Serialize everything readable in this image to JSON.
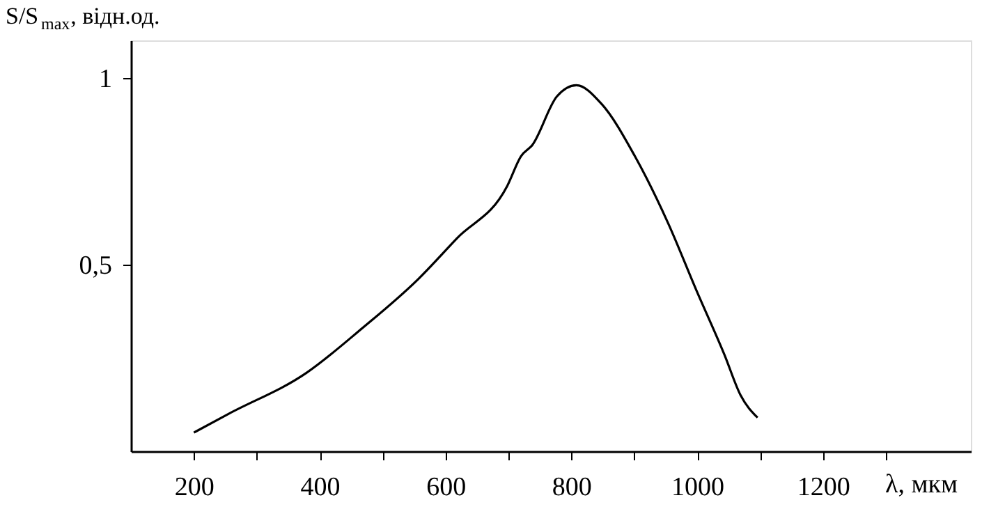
{
  "chart_data": {
    "type": "line",
    "xlabel": "λ, мкм",
    "ylabel": "S/S$_{max}$, відн.од.",
    "x": [
      200,
      255,
      379,
      468,
      556,
      618,
      698,
      720,
      738,
      777,
      808,
      848,
      901,
      954,
      999,
      1043,
      1069,
      1096
    ],
    "series": [
      {
        "color": "#000000",
        "values": [
          0.05,
          0.1,
          0.21,
          0.33,
          0.46,
          0.57,
          0.71,
          0.79,
          0.82,
          0.95,
          0.98,
          0.93,
          0.79,
          0.61,
          0.43,
          0.26,
          0.15,
          0.09
        ]
      }
    ],
    "xlim": [
      100,
      1435
    ],
    "ylim": [
      0,
      1.1
    ],
    "xticks": [
      200,
      {
        "value": 300,
        "label": null
      },
      400,
      {
        "value": 500,
        "label": null
      },
      600,
      {
        "value": 700,
        "label": null
      },
      800,
      {
        "value": 900,
        "label": null
      },
      1000,
      {
        "value": 1100,
        "label": null
      },
      1200,
      {
        "value": 1300,
        "label": null
      }
    ],
    "yticks": [
      {
        "value": 0.5,
        "label": "0,5"
      },
      1
    ],
    "grid": false,
    "legend": false,
    "marker": "none",
    "line_style": "solid"
  }
}
